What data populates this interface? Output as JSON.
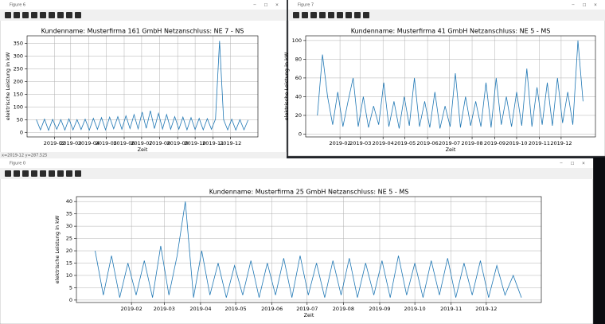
{
  "windows": [
    {
      "title": "Figure 6"
    },
    {
      "title": "Figure 7"
    },
    {
      "title": "Figure 0"
    }
  ],
  "status": "x=2019-12 y=287.525",
  "chart_data": [
    {
      "type": "line",
      "title": "Kundenname: Musterfirma 161 GmbH    Netzanschluss: NE 7 - NS",
      "x_label": "Zeit",
      "y_label": "elektrische Leistung in kW",
      "color": "#1f77b4",
      "grid": true,
      "xlim": [
        -16,
        381
      ],
      "ylim": [
        -18,
        380
      ],
      "yticks": [
        0,
        50,
        100,
        150,
        200,
        250,
        300,
        350
      ],
      "xticks": [
        {
          "value": 31,
          "label": "2019-02"
        },
        {
          "value": 59,
          "label": "2019-03"
        },
        {
          "value": 90,
          "label": "2019-04"
        },
        {
          "value": 120,
          "label": "2019-05"
        },
        {
          "value": 151,
          "label": "2019-06"
        },
        {
          "value": 181,
          "label": "2019-07"
        },
        {
          "value": 212,
          "label": "2019-08"
        },
        {
          "value": 243,
          "label": "2019-09"
        },
        {
          "value": 273,
          "label": "2019-10"
        },
        {
          "value": 304,
          "label": "2019-11"
        },
        {
          "value": 334,
          "label": "2019-12"
        }
      ],
      "x": [
        0,
        7,
        14,
        21,
        28,
        35,
        42,
        49,
        56,
        63,
        70,
        77,
        84,
        91,
        98,
        105,
        112,
        119,
        126,
        133,
        140,
        147,
        154,
        161,
        168,
        175,
        182,
        189,
        196,
        203,
        210,
        217,
        224,
        231,
        238,
        245,
        252,
        259,
        266,
        273,
        280,
        287,
        294,
        301,
        308,
        315,
        322,
        329,
        336,
        343,
        350,
        357,
        364
      ],
      "values": [
        50,
        10,
        52,
        8,
        51,
        12,
        50,
        9,
        53,
        10,
        50,
        11,
        52,
        9,
        55,
        12,
        58,
        10,
        60,
        14,
        62,
        12,
        65,
        15,
        70,
        14,
        80,
        16,
        85,
        15,
        75,
        13,
        70,
        12,
        62,
        12,
        60,
        10,
        58,
        11,
        55,
        10,
        54,
        12,
        52,
        360,
        50,
        10,
        52,
        9,
        50,
        10,
        48
      ]
    },
    {
      "type": "line",
      "title": "Kundenname: Musterfirma 41 GmbH    Netzanschluss: NE 5 - MS",
      "x_label": "Zeit",
      "y_label": "elektrische Leistung in kW",
      "color": "#1f77b4",
      "grid": true,
      "xlim": [
        -16,
        381
      ],
      "ylim": [
        -3,
        105
      ],
      "yticks": [
        0,
        20,
        40,
        60,
        80,
        100
      ],
      "xticks": [
        {
          "value": 31,
          "label": "2019-02"
        },
        {
          "value": 59,
          "label": "2019-03"
        },
        {
          "value": 90,
          "label": "2019-04"
        },
        {
          "value": 120,
          "label": "2019-05"
        },
        {
          "value": 151,
          "label": "2019-06"
        },
        {
          "value": 181,
          "label": "2019-07"
        },
        {
          "value": 212,
          "label": "2019-08"
        },
        {
          "value": 243,
          "label": "2019-09"
        },
        {
          "value": 273,
          "label": "2019-10"
        },
        {
          "value": 304,
          "label": "2019-11"
        },
        {
          "value": 334,
          "label": "2019-12"
        }
      ],
      "x": [
        0,
        7,
        14,
        21,
        28,
        35,
        42,
        49,
        56,
        63,
        70,
        77,
        84,
        91,
        98,
        105,
        112,
        119,
        126,
        133,
        140,
        147,
        154,
        161,
        168,
        175,
        182,
        189,
        196,
        203,
        210,
        217,
        224,
        231,
        238,
        245,
        252,
        259,
        266,
        273,
        280,
        287,
        294,
        301,
        308,
        315,
        322,
        329,
        336,
        343,
        350,
        357,
        364
      ],
      "values": [
        20,
        85,
        40,
        10,
        45,
        8,
        35,
        60,
        8,
        40,
        7,
        30,
        10,
        55,
        8,
        35,
        6,
        40,
        9,
        60,
        8,
        35,
        7,
        45,
        6,
        30,
        8,
        65,
        7,
        40,
        9,
        35,
        8,
        55,
        7,
        60,
        10,
        40,
        8,
        45,
        9,
        70,
        8,
        50,
        10,
        55,
        9,
        60,
        12,
        45,
        10,
        100,
        35
      ]
    },
    {
      "type": "line",
      "title": "Kundenname: Musterfirma 25 GmbH    Netzanschluss: NE 5 - MS",
      "x_label": "Zeit",
      "y_label": "elektrische Leistung in kW",
      "color": "#1f77b4",
      "grid": true,
      "xlim": [
        -16,
        381
      ],
      "ylim": [
        -1,
        42
      ],
      "yticks": [
        0,
        5,
        10,
        15,
        20,
        25,
        30,
        35,
        40
      ],
      "xticks": [
        {
          "value": 31,
          "label": "2019-02"
        },
        {
          "value": 59,
          "label": "2019-03"
        },
        {
          "value": 90,
          "label": "2019-04"
        },
        {
          "value": 120,
          "label": "2019-05"
        },
        {
          "value": 151,
          "label": "2019-06"
        },
        {
          "value": 181,
          "label": "2019-07"
        },
        {
          "value": 212,
          "label": "2019-08"
        },
        {
          "value": 243,
          "label": "2019-09"
        },
        {
          "value": 273,
          "label": "2019-10"
        },
        {
          "value": 304,
          "label": "2019-11"
        },
        {
          "value": 334,
          "label": "2019-12"
        }
      ],
      "x": [
        0,
        7,
        14,
        21,
        28,
        35,
        42,
        49,
        56,
        63,
        70,
        77,
        84,
        91,
        98,
        105,
        112,
        119,
        126,
        133,
        140,
        147,
        154,
        161,
        168,
        175,
        182,
        189,
        196,
        203,
        210,
        217,
        224,
        231,
        238,
        245,
        252,
        259,
        266,
        273,
        280,
        287,
        294,
        301,
        308,
        315,
        322,
        329,
        336,
        343,
        350,
        357,
        364
      ],
      "values": [
        20,
        2,
        18,
        1,
        15,
        2,
        16,
        1,
        22,
        2,
        18,
        40,
        1,
        20,
        2,
        15,
        1,
        14,
        2,
        16,
        1,
        15,
        2,
        17,
        1,
        18,
        2,
        15,
        1,
        16,
        2,
        17,
        1,
        15,
        2,
        16,
        1,
        18,
        2,
        15,
        1,
        16,
        2,
        17,
        1,
        15,
        2,
        16,
        1,
        14,
        2,
        10,
        1
      ]
    }
  ]
}
